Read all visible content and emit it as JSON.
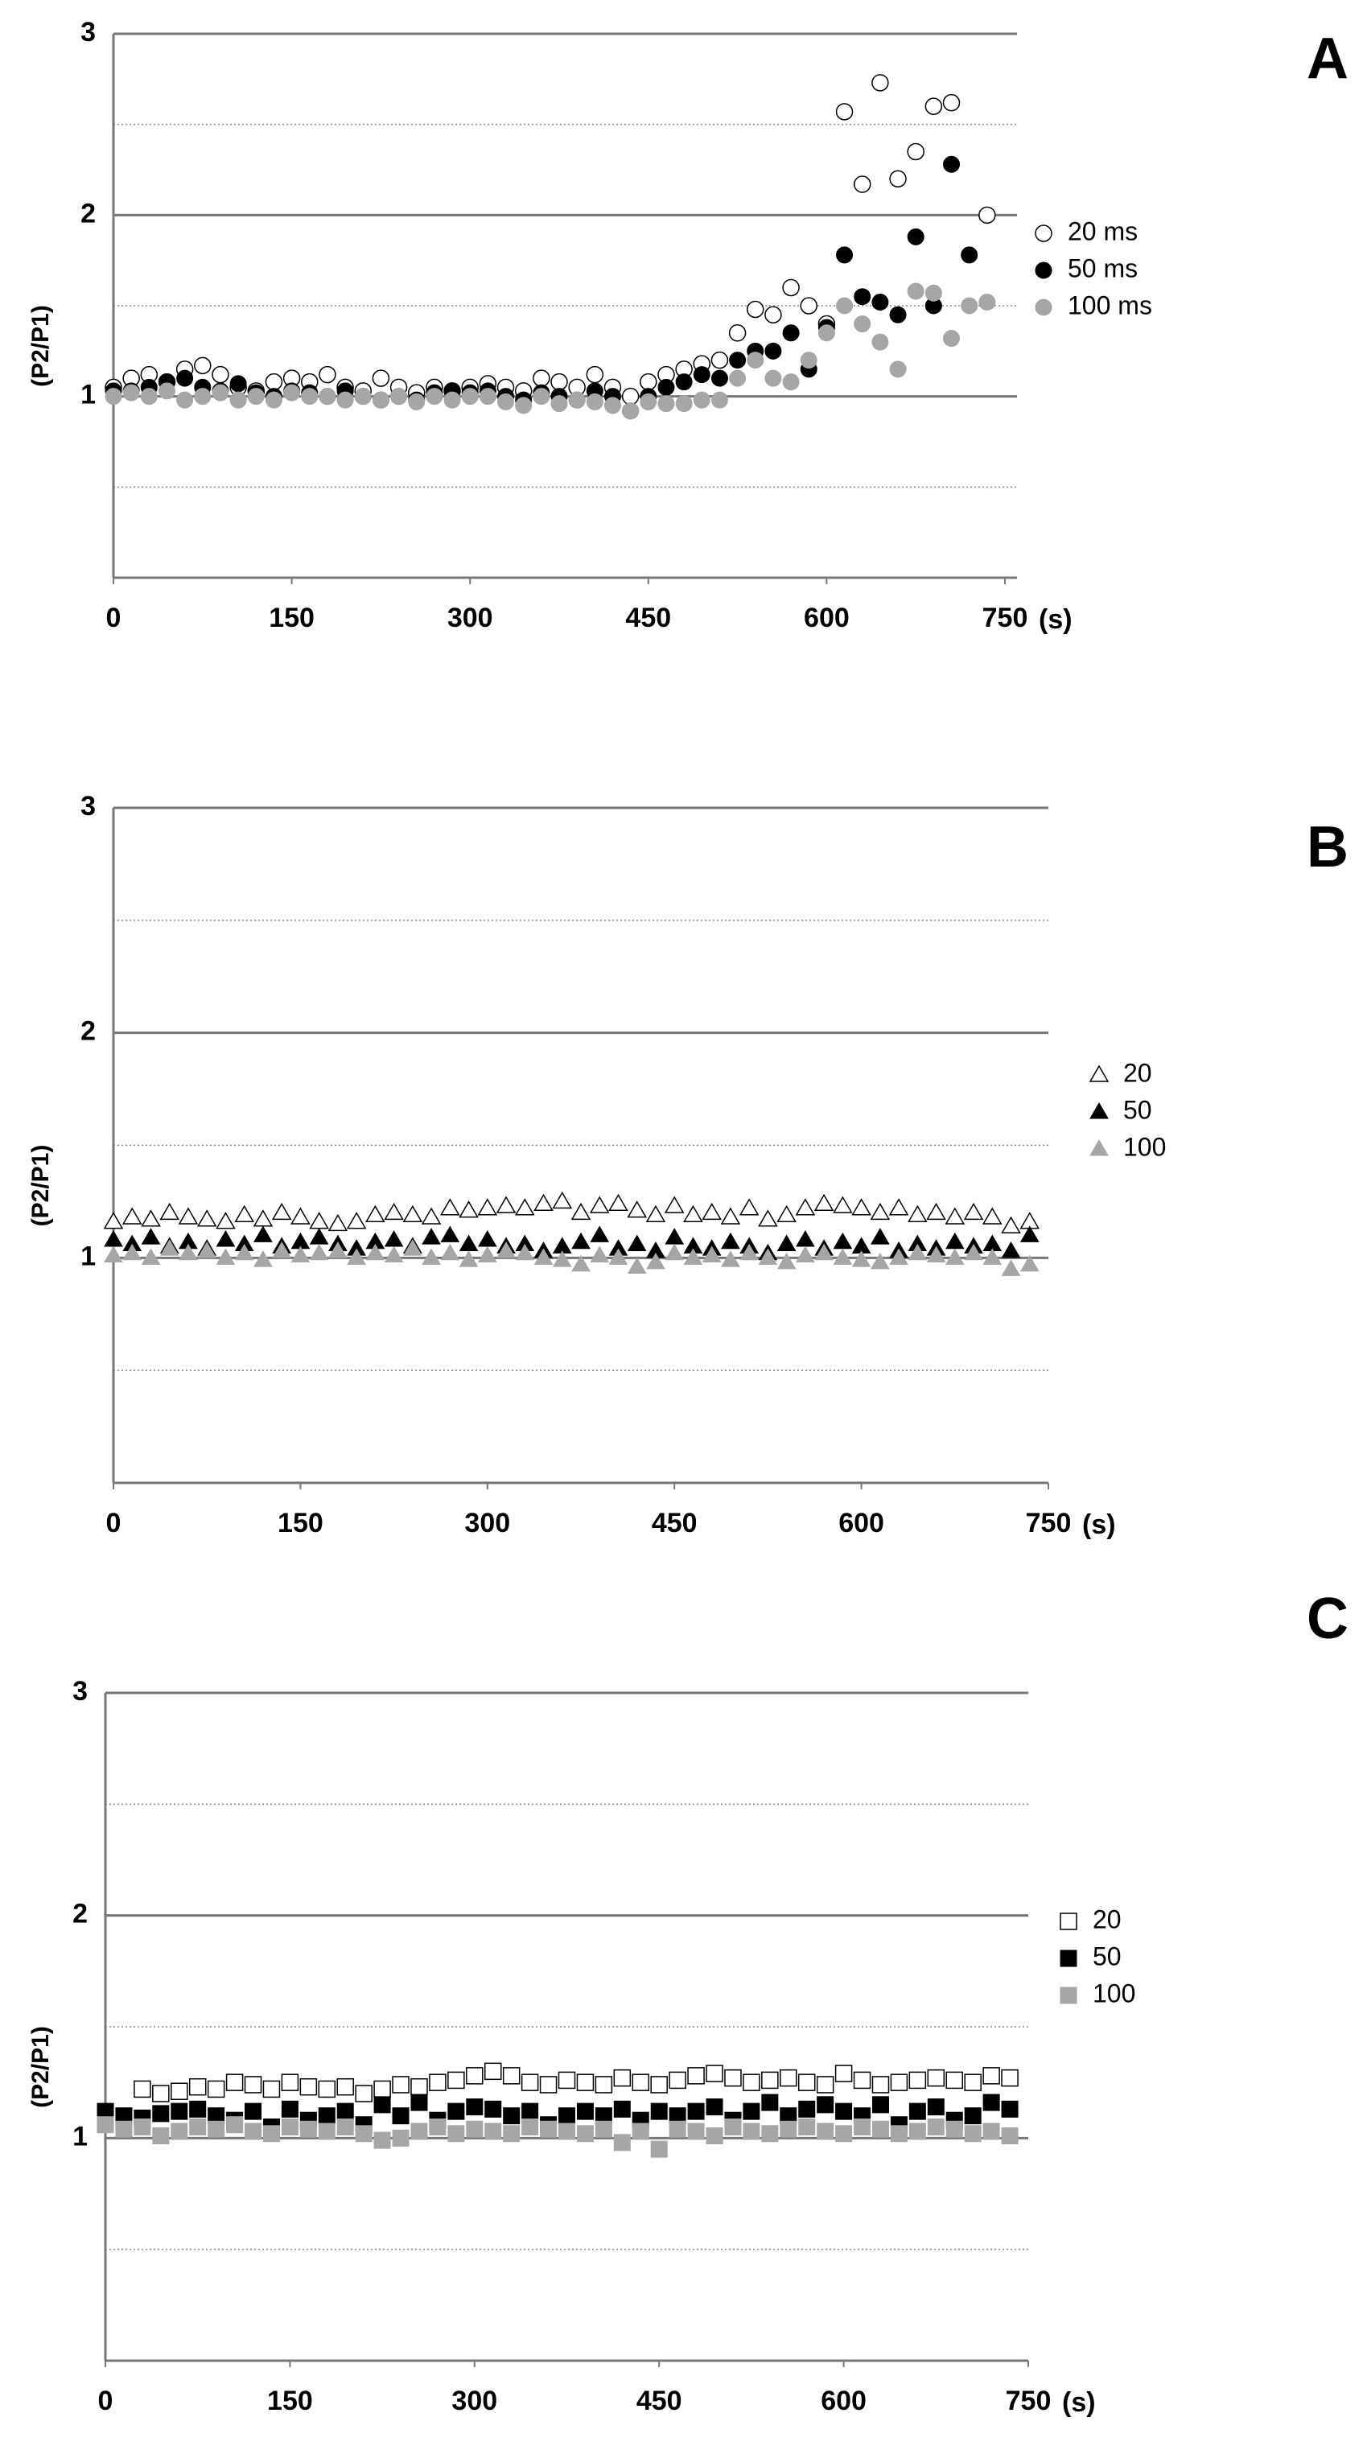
{
  "chart_data": [
    {
      "type": "scatter",
      "panel_label": "A",
      "ylabel": "(P2/P1)",
      "xlabel": "(s)",
      "marker": "circle",
      "xlim": [
        0,
        750
      ],
      "xticks": [
        0,
        150,
        300,
        450,
        600,
        750
      ],
      "ylim": [
        0,
        3
      ],
      "yticks": [
        1,
        2,
        3
      ],
      "minor_grid": [
        0.5,
        1.5,
        2.5
      ],
      "x": [
        0,
        15,
        30,
        45,
        60,
        75,
        90,
        105,
        120,
        135,
        150,
        165,
        180,
        195,
        210,
        225,
        240,
        255,
        270,
        285,
        300,
        315,
        330,
        345,
        360,
        375,
        390,
        405,
        420,
        435,
        450,
        465,
        480,
        495,
        510,
        525,
        540,
        555,
        570,
        585,
        600,
        615,
        630,
        645,
        660,
        675,
        690,
        705,
        720,
        735
      ],
      "series": [
        {
          "name": "20 ms",
          "color": "#000000",
          "filled": false,
          "values": [
            1.05,
            1.1,
            1.12,
            1.08,
            1.15,
            1.17,
            1.12,
            1.05,
            1.03,
            1.08,
            1.1,
            1.08,
            1.12,
            1.05,
            1.03,
            1.1,
            1.05,
            1.02,
            1.05,
            1.03,
            1.05,
            1.07,
            1.05,
            1.03,
            1.1,
            1.08,
            1.05,
            1.12,
            1.05,
            1.0,
            1.08,
            1.12,
            1.15,
            1.18,
            1.2,
            1.35,
            1.48,
            1.45,
            1.6,
            1.5,
            1.4,
            2.57,
            2.17,
            2.73,
            2.2,
            2.35,
            2.6,
            2.62,
            null,
            2.0
          ]
        },
        {
          "name": "50 ms",
          "color": "#000000",
          "filled": true,
          "values": [
            1.03,
            1.03,
            1.05,
            1.08,
            1.1,
            1.05,
            1.03,
            1.07,
            1.02,
            1.0,
            1.03,
            1.02,
            1.0,
            1.03,
            1.0,
            0.98,
            1.0,
            0.98,
            1.02,
            1.03,
            1.02,
            1.03,
            1.0,
            0.98,
            1.02,
            1.0,
            0.98,
            1.03,
            1.0,
            0.92,
            1.0,
            1.05,
            1.08,
            1.12,
            1.1,
            1.2,
            1.25,
            1.25,
            1.35,
            1.15,
            1.38,
            1.78,
            1.55,
            1.52,
            1.45,
            1.88,
            1.5,
            2.28,
            1.78,
            null
          ]
        },
        {
          "name": "100 ms",
          "color": "#a6a6a6",
          "filled": true,
          "values": [
            1.0,
            1.02,
            1.0,
            1.03,
            0.98,
            1.0,
            1.02,
            0.98,
            1.0,
            0.98,
            1.02,
            1.0,
            1.0,
            0.98,
            1.0,
            0.98,
            1.0,
            0.97,
            1.0,
            0.98,
            1.0,
            1.0,
            0.97,
            0.95,
            1.0,
            0.96,
            0.98,
            0.97,
            0.95,
            0.92,
            0.97,
            0.96,
            0.96,
            0.98,
            0.98,
            1.1,
            1.2,
            1.1,
            1.08,
            1.2,
            1.35,
            1.5,
            1.4,
            1.3,
            1.15,
            1.58,
            1.57,
            1.32,
            1.5,
            1.52
          ]
        }
      ]
    },
    {
      "type": "scatter",
      "panel_label": "B",
      "ylabel": "(P2/P1)",
      "xlabel": "(s)",
      "marker": "triangle",
      "xlim": [
        0,
        750
      ],
      "xticks": [
        0,
        150,
        300,
        450,
        600,
        750
      ],
      "ylim": [
        0,
        3
      ],
      "yticks": [
        1,
        2,
        3
      ],
      "minor_grid": [
        0.5,
        1.5,
        2.5
      ],
      "x": [
        0,
        15,
        30,
        45,
        60,
        75,
        90,
        105,
        120,
        135,
        150,
        165,
        180,
        195,
        210,
        225,
        240,
        255,
        270,
        285,
        300,
        315,
        330,
        345,
        360,
        375,
        390,
        405,
        420,
        435,
        450,
        465,
        480,
        495,
        510,
        525,
        540,
        555,
        570,
        585,
        600,
        615,
        630,
        645,
        660,
        675,
        690,
        705,
        720,
        735
      ],
      "series": [
        {
          "name": "20",
          "color": "#000000",
          "filled": false,
          "values": [
            1.16,
            1.18,
            1.17,
            1.2,
            1.18,
            1.17,
            1.16,
            1.19,
            1.17,
            1.2,
            1.18,
            1.16,
            1.15,
            1.16,
            1.19,
            1.2,
            1.19,
            1.18,
            1.22,
            1.21,
            1.22,
            1.23,
            1.22,
            1.24,
            1.25,
            1.2,
            1.23,
            1.24,
            1.21,
            1.19,
            1.23,
            1.19,
            1.2,
            1.18,
            1.22,
            1.17,
            1.19,
            1.22,
            1.24,
            1.23,
            1.22,
            1.2,
            1.22,
            1.19,
            1.2,
            1.18,
            1.2,
            1.18,
            1.14,
            1.16
          ]
        },
        {
          "name": "50",
          "color": "#000000",
          "filled": true,
          "values": [
            1.08,
            1.06,
            1.09,
            1.05,
            1.07,
            1.04,
            1.08,
            1.06,
            1.1,
            1.05,
            1.07,
            1.09,
            1.06,
            1.04,
            1.07,
            1.08,
            1.05,
            1.09,
            1.1,
            1.06,
            1.08,
            1.05,
            1.06,
            1.03,
            1.05,
            1.07,
            1.1,
            1.04,
            1.06,
            1.03,
            1.09,
            1.05,
            1.04,
            1.07,
            1.05,
            1.02,
            1.06,
            1.08,
            1.04,
            1.07,
            1.05,
            1.09,
            1.03,
            1.06,
            1.04,
            1.07,
            1.05,
            1.06,
            1.03,
            1.1
          ]
        },
        {
          "name": "100",
          "color": "#a6a6a6",
          "filled": true,
          "values": [
            1.01,
            1.02,
            1.0,
            1.04,
            1.02,
            1.03,
            1.0,
            1.02,
            0.99,
            1.03,
            1.01,
            1.02,
            1.03,
            1.0,
            1.02,
            1.01,
            1.04,
            1.0,
            1.02,
            0.99,
            1.01,
            1.03,
            1.02,
            1.0,
            0.99,
            0.97,
            1.01,
            1.0,
            0.96,
            0.98,
            1.02,
            1.0,
            1.01,
            0.99,
            1.02,
            1.0,
            0.98,
            1.01,
            1.02,
            1.0,
            0.99,
            0.98,
            1.0,
            1.02,
            1.01,
            1.0,
            1.02,
            1.0,
            0.95,
            0.97
          ]
        }
      ]
    },
    {
      "type": "scatter",
      "panel_label": "C",
      "ylabel": "(P2/P1)",
      "xlabel": "(s)",
      "marker": "square",
      "xlim": [
        0,
        750
      ],
      "xticks": [
        0,
        150,
        300,
        450,
        600,
        750
      ],
      "ylim": [
        0,
        3
      ],
      "yticks": [
        1,
        2,
        3
      ],
      "minor_grid": [
        0.5,
        1.5,
        2.5
      ],
      "x": [
        0,
        15,
        30,
        45,
        60,
        75,
        90,
        105,
        120,
        135,
        150,
        165,
        180,
        195,
        210,
        225,
        240,
        255,
        270,
        285,
        300,
        315,
        330,
        345,
        360,
        375,
        390,
        405,
        420,
        435,
        450,
        465,
        480,
        495,
        510,
        525,
        540,
        555,
        570,
        585,
        600,
        615,
        630,
        645,
        660,
        675,
        690,
        705,
        720,
        735
      ],
      "series": [
        {
          "name": "20",
          "color": "#000000",
          "filled": false,
          "values": [
            null,
            null,
            1.22,
            1.2,
            1.21,
            1.23,
            1.22,
            1.25,
            1.24,
            1.22,
            1.25,
            1.23,
            1.22,
            1.23,
            1.2,
            1.22,
            1.24,
            1.23,
            1.25,
            1.26,
            1.28,
            1.3,
            1.28,
            1.25,
            1.24,
            1.26,
            1.25,
            1.24,
            1.27,
            1.25,
            1.24,
            1.26,
            1.28,
            1.29,
            1.27,
            1.25,
            1.26,
            1.27,
            1.25,
            1.24,
            1.29,
            1.26,
            1.24,
            1.25,
            1.26,
            1.27,
            1.26,
            1.25,
            1.28,
            1.27
          ]
        },
        {
          "name": "50",
          "color": "#000000",
          "filled": true,
          "values": [
            1.12,
            1.1,
            1.09,
            1.11,
            1.12,
            1.13,
            1.1,
            1.08,
            1.12,
            1.05,
            1.13,
            1.08,
            1.1,
            1.12,
            1.06,
            1.15,
            1.1,
            1.16,
            1.08,
            1.12,
            1.14,
            1.13,
            1.1,
            1.12,
            1.06,
            1.1,
            1.12,
            1.1,
            1.13,
            1.08,
            1.12,
            1.1,
            1.12,
            1.14,
            1.08,
            1.12,
            1.16,
            1.1,
            1.13,
            1.15,
            1.12,
            1.1,
            1.15,
            1.06,
            1.12,
            1.14,
            1.08,
            1.1,
            1.16,
            1.13
          ]
        },
        {
          "name": "100",
          "color": "#a6a6a6",
          "filled": true,
          "values": [
            1.06,
            1.04,
            1.05,
            1.01,
            1.03,
            1.05,
            1.04,
            1.06,
            1.03,
            1.02,
            1.05,
            1.04,
            1.03,
            1.05,
            1.02,
            0.99,
            1.0,
            1.03,
            1.05,
            1.02,
            1.04,
            1.03,
            1.02,
            1.05,
            1.04,
            1.03,
            1.02,
            1.04,
            0.98,
            1.03,
            0.95,
            1.04,
            1.03,
            1.01,
            1.05,
            1.03,
            1.02,
            1.04,
            1.05,
            1.03,
            1.02,
            1.05,
            1.04,
            1.02,
            1.03,
            1.05,
            1.04,
            1.02,
            1.03,
            1.01
          ]
        }
      ]
    }
  ]
}
